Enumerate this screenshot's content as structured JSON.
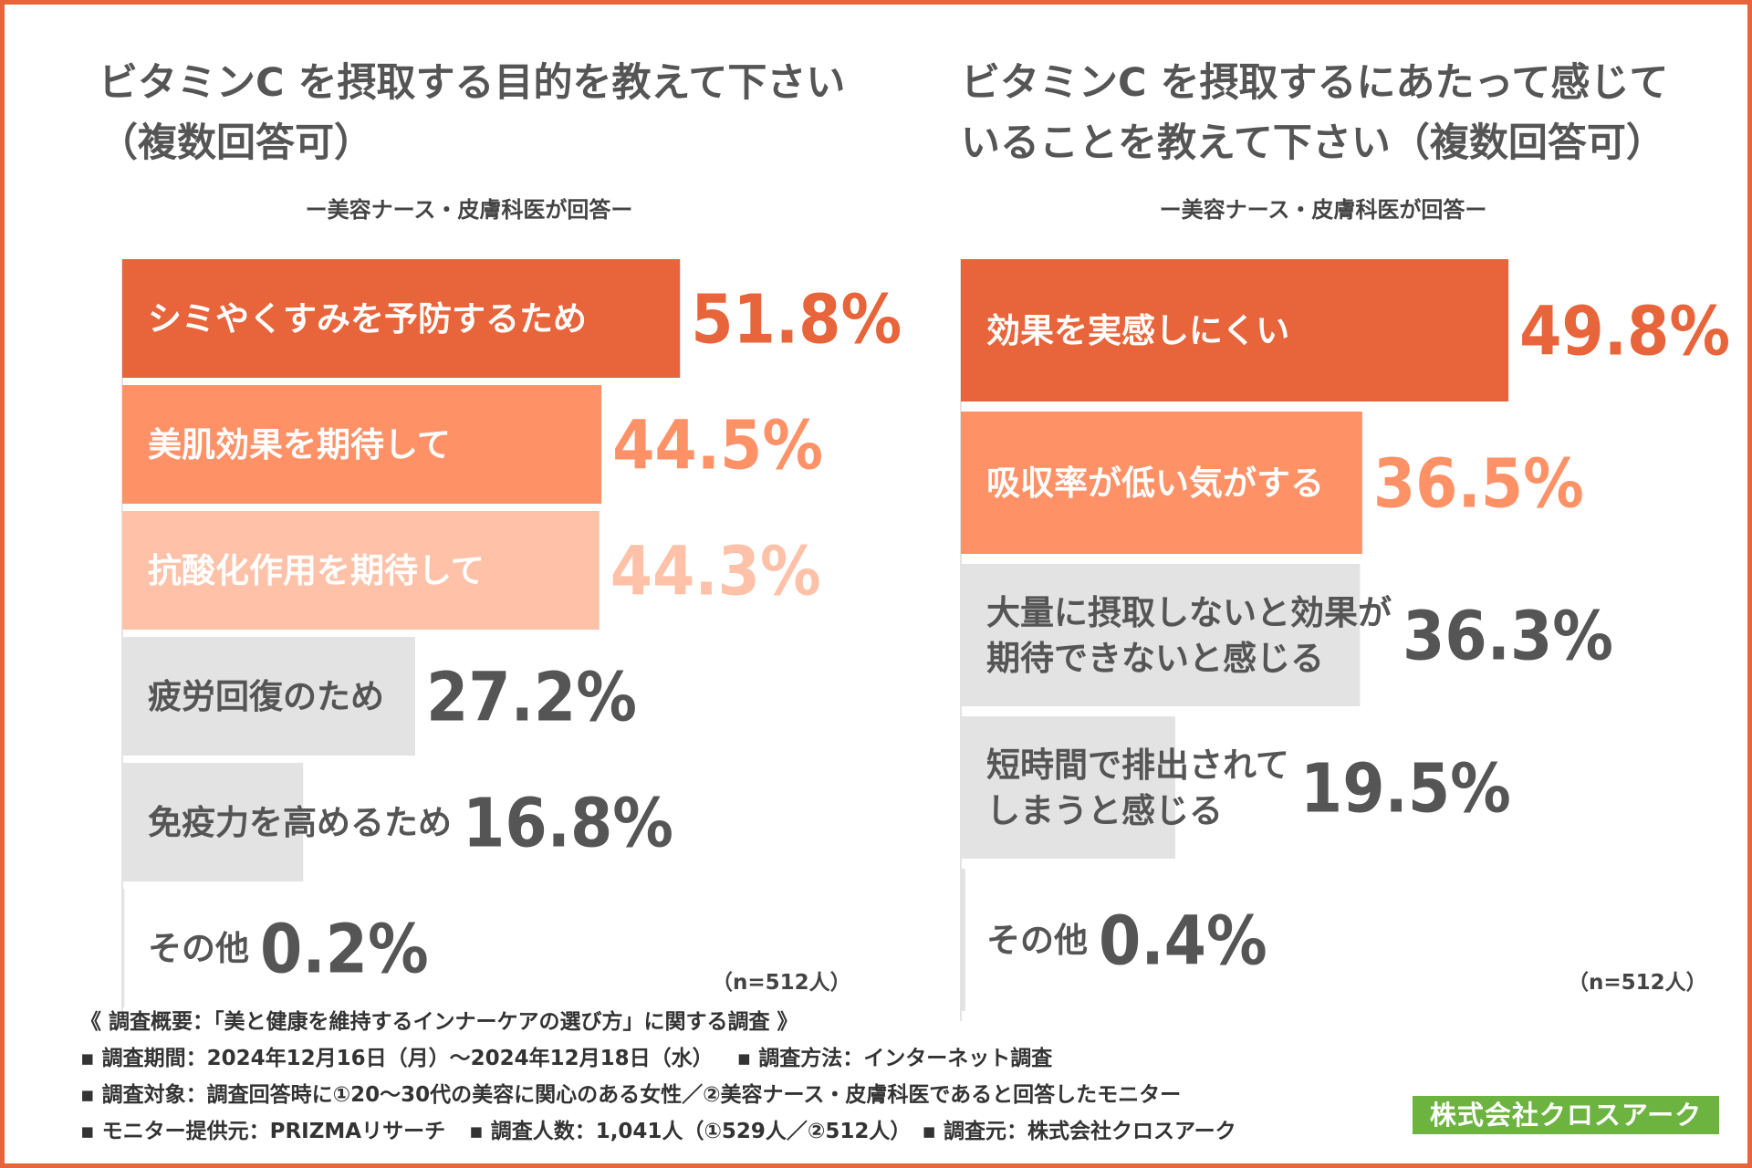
{
  "chart_data": [
    {
      "type": "bar",
      "orientation": "horizontal",
      "title": "ビタミンC を摂取する目的を教えて下さい\n（複数回答可）",
      "subtitle": "ー美容ナース・皮膚科医が回答ー",
      "note": "（n=512人）",
      "unit": "%",
      "categories": [
        "シミやくすみを予防するため",
        "美肌効果を期待して",
        "抗酸化作用を期待して",
        "疲労回復のため",
        "免疫力を高めるため",
        "その他"
      ],
      "category_lines": [
        [
          "シミやくすみを予防するため"
        ],
        [
          "美肌効果を期待して"
        ],
        [
          "抗酸化作用を期待して"
        ],
        [
          "疲労回復のため"
        ],
        [
          "免疫力を高めるため"
        ],
        [
          "その他"
        ]
      ],
      "values": [
        51.8,
        44.5,
        44.3,
        27.2,
        16.8,
        0.2
      ],
      "value_labels": [
        "51.8%",
        "44.5%",
        "44.3%",
        "27.2%",
        "16.8%",
        "0.2%"
      ],
      "colors": [
        "#e8643a",
        "#ff9167",
        "#ffc1a8",
        "#e3e3e3",
        "#e3e3e3",
        "#e3e3e3"
      ],
      "value_colors": [
        "#e8643a",
        "#ff9167",
        "#ffc1a8",
        "#555555",
        "#555555",
        "#555555"
      ],
      "label_colors": [
        "#ffffff",
        "#ffffff",
        "#ffffff",
        "#555555",
        "#555555",
        "#555555"
      ]
    },
    {
      "type": "bar",
      "orientation": "horizontal",
      "title": "ビタミンC を摂取するにあたって感じて\nいることを教えて下さい（複数回答可）",
      "subtitle": "ー美容ナース・皮膚科医が回答ー",
      "note": "（n=512人）",
      "unit": "%",
      "categories": [
        "効果を実感しにくい",
        "吸収率が低い気がする",
        "大量に摂取しないと効果が期待できないと感じる",
        "短時間で排出されてしまうと感じる",
        "その他"
      ],
      "category_lines": [
        [
          "効果を実感しにくい"
        ],
        [
          "吸収率が低い気がする"
        ],
        [
          "大量に摂取しないと効果が",
          "期待できないと感じる"
        ],
        [
          "短時間で排出されて",
          "しまうと感じる"
        ],
        [
          "その他"
        ]
      ],
      "values": [
        49.8,
        36.5,
        36.3,
        19.5,
        0.4
      ],
      "value_labels": [
        "49.8%",
        "36.5%",
        "36.3%",
        "19.5%",
        "0.4%"
      ],
      "colors": [
        "#e8643a",
        "#ff9167",
        "#e3e3e3",
        "#e3e3e3",
        "#e3e3e3"
      ],
      "value_colors": [
        "#e8643a",
        "#ff9167",
        "#555555",
        "#555555",
        "#555555"
      ],
      "label_colors": [
        "#ffffff",
        "#ffffff",
        "#555555",
        "#555555",
        "#555555"
      ]
    }
  ],
  "footer": {
    "heading": "《 調査概要：「美と健康を維持するインナーケアの選び方」に関する調査 》",
    "period": "▪ 調査期間：2024年12月16日（月）～2024年12月18日（水）",
    "method": "▪ 調査方法：インターネット調査",
    "target": "▪ 調査対象：調査回答時に①20～30代の美容に関心のある女性／②美容ナース・皮膚科医であると回答したモニター",
    "provider": "▪ モニター提供元：PRIZMAリサーチ",
    "count": "▪ 調査人数：1,041人（①529人／②512人）",
    "source": "▪ 調査元：株式会社クロスアーク"
  },
  "badge": {
    "company": "株式会社クロスアーク",
    "color": "#6db33f"
  },
  "accent_color": "#e8643a"
}
